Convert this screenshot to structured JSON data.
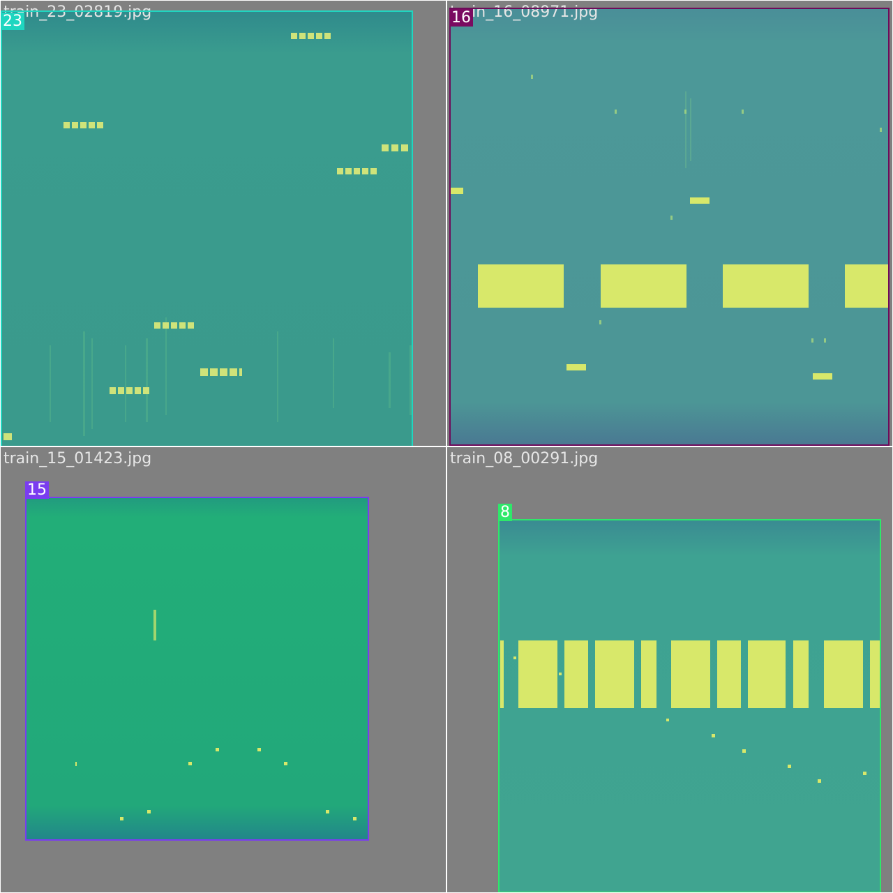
{
  "tiles": [
    {
      "filename": "train_23_02819.jpg",
      "class_id": "23",
      "box_color": "#1fd6c0",
      "label_bg": "#1fd6c0"
    },
    {
      "filename": "train_16_08971.jpg",
      "class_id": "16",
      "box_color": "#6e0a5a",
      "label_bg": "#7a0a60"
    },
    {
      "filename": "train_15_01423.jpg",
      "class_id": "15",
      "box_color": "#7a3cf0",
      "label_bg": "#7a3cf0"
    },
    {
      "filename": "train_08_00291.jpg",
      "class_id": "8",
      "box_color": "#2ee86a",
      "label_bg": "#2ee86a"
    }
  ],
  "colors": {
    "grid_bg": "#ffffff",
    "tile_bg": "#808080",
    "spec_teal": "#3a9e90",
    "spec_steel": "#4a9494",
    "spec_green": "#22b078",
    "spec_mint": "#3ea893",
    "signal_yellow": "#d8e86a"
  }
}
